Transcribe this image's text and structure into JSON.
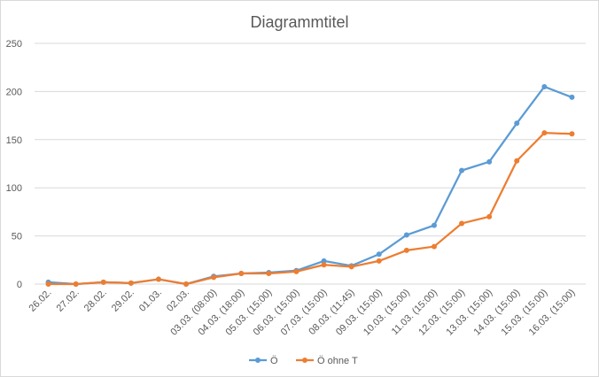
{
  "chart_data": {
    "type": "line",
    "title": "Diagrammtitel",
    "xlabel": "",
    "ylabel": "",
    "ylim": [
      0,
      250
    ],
    "yticks": [
      0,
      50,
      100,
      150,
      200,
      250
    ],
    "grid": true,
    "legend_position": "bottom",
    "categories": [
      "26.02.",
      "27.02.",
      "28.02.",
      "29.02.",
      "01.03.",
      "02.03.",
      "03.03. (08:00)",
      "04.03. (18:00)",
      "05.03. (15:00)",
      "06.03. (15:00)",
      "07.03. (15:00)",
      "08.03. (11:45)",
      "09.03. (15:00)",
      "10.03. (15:00)",
      "11.03. (15:00)",
      "12.03. (15:00)",
      "13.03. (15:00)",
      "14.03. (15:00)",
      "15.03. (15:00)",
      "16.03. (15:00)"
    ],
    "series": [
      {
        "name": "Ö",
        "color": "#5b9bd5",
        "values": [
          2,
          0,
          2,
          1,
          5,
          0,
          8,
          11,
          12,
          14,
          24,
          19,
          31,
          51,
          61,
          118,
          127,
          167,
          205,
          194
        ]
      },
      {
        "name": "Ö ohne T",
        "color": "#ed7d31",
        "values": [
          0,
          0,
          2,
          1,
          5,
          0,
          7,
          11,
          11,
          13,
          20,
          18,
          24,
          35,
          39,
          63,
          70,
          128,
          157,
          156
        ]
      }
    ]
  }
}
